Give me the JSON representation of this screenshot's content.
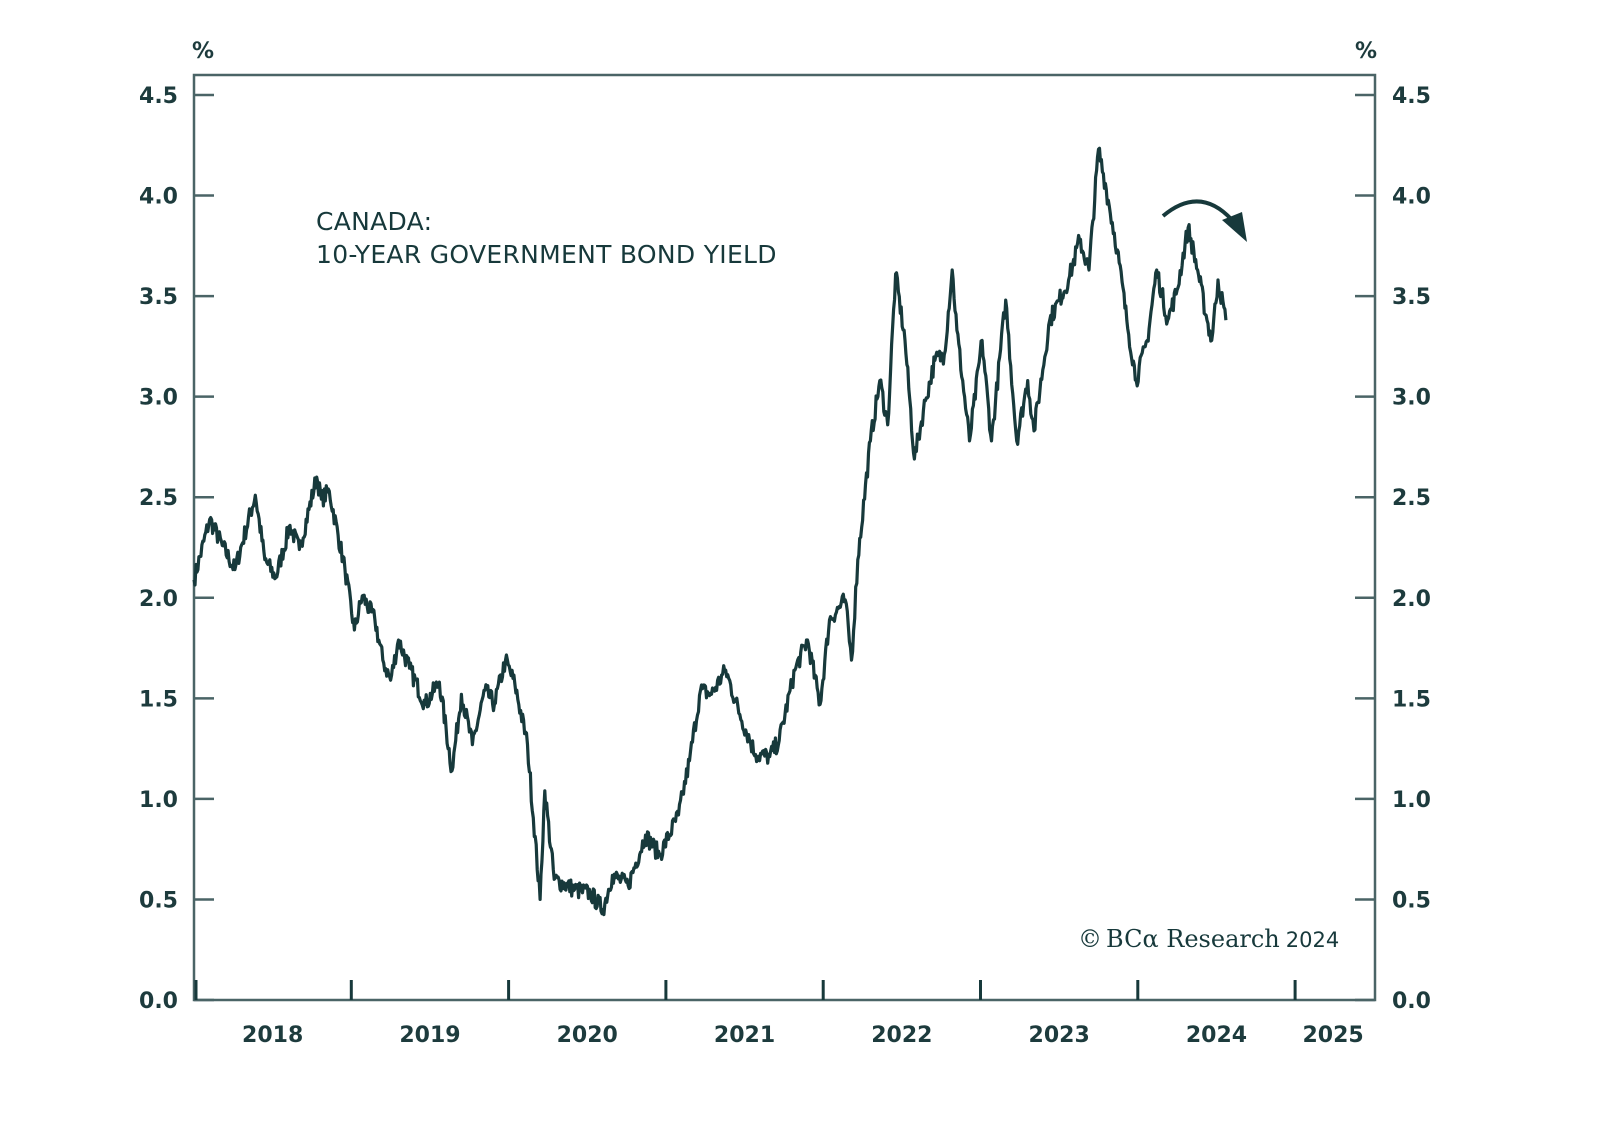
{
  "chart_data": {
    "type": "line",
    "title": "CANADA:",
    "subtitle": "10-YEAR GOVERNMENT BOND YIELD",
    "xlabel": "",
    "ylabel_left": "%",
    "ylabel_right": "%",
    "ylim": [
      0.0,
      4.5
    ],
    "xlim": [
      2018.0,
      2025.5
    ],
    "y_ticks": [
      "0.0",
      "0.5",
      "1.0",
      "1.5",
      "2.0",
      "2.5",
      "3.0",
      "3.5",
      "4.0",
      "4.5"
    ],
    "y_tick_values": [
      0.0,
      0.5,
      1.0,
      1.5,
      2.0,
      2.5,
      3.0,
      3.5,
      4.0,
      4.5
    ],
    "x_tick_labels": [
      "2018",
      "2019",
      "2020",
      "2021",
      "2022",
      "2023",
      "2024",
      "2025"
    ],
    "x_year_boundaries": [
      2019,
      2020,
      2021,
      2022,
      2023,
      2024,
      2025
    ],
    "grid": false,
    "legend": "none",
    "annotation": "curved-arrow-pointing-down",
    "copyright": {
      "symbol": "©",
      "brand": "BCα Research",
      "year": "2024"
    },
    "line_color": "#17393b",
    "series": [
      {
        "name": "Canada 10-Year Government Bond Yield",
        "x": [
          2018.0,
          2018.1,
          2018.18,
          2018.26,
          2018.39,
          2018.45,
          2018.52,
          2018.61,
          2018.67,
          2018.78,
          2018.81,
          2018.86,
          2018.96,
          2019.02,
          2019.07,
          2019.15,
          2019.2,
          2019.25,
          2019.3,
          2019.37,
          2019.47,
          2019.56,
          2019.64,
          2019.7,
          2019.77,
          2019.85,
          2019.91,
          2019.98,
          2020.04,
          2020.12,
          2020.2,
          2020.23,
          2020.29,
          2020.42,
          2020.52,
          2020.6,
          2020.66,
          2020.76,
          2020.87,
          2020.96,
          2021.08,
          2021.15,
          2021.22,
          2021.29,
          2021.38,
          2021.47,
          2021.57,
          2021.66,
          2021.72,
          2021.82,
          2021.9,
          2021.98,
          2022.04,
          2022.14,
          2022.18,
          2022.22,
          2022.3,
          2022.36,
          2022.41,
          2022.46,
          2022.52,
          2022.58,
          2022.65,
          2022.71,
          2022.77,
          2022.82,
          2022.85,
          2022.93,
          2023.01,
          2023.07,
          2023.16,
          2023.23,
          2023.3,
          2023.34,
          2023.44,
          2023.5,
          2023.56,
          2023.63,
          2023.69,
          2023.75,
          2023.8,
          2023.87,
          2023.93,
          2023.99,
          2024.06,
          2024.12,
          2024.19,
          2024.25,
          2024.32,
          2024.38,
          2024.44,
          2024.47,
          2024.51,
          2024.56
        ],
        "values": [
          2.09,
          2.39,
          2.26,
          2.14,
          2.51,
          2.19,
          2.1,
          2.36,
          2.24,
          2.6,
          2.49,
          2.53,
          2.14,
          1.84,
          2.01,
          1.89,
          1.69,
          1.59,
          1.79,
          1.65,
          1.47,
          1.58,
          1.14,
          1.52,
          1.27,
          1.54,
          1.47,
          1.69,
          1.57,
          1.27,
          0.5,
          1.04,
          0.6,
          0.55,
          0.53,
          0.45,
          0.62,
          0.57,
          0.82,
          0.72,
          0.92,
          1.19,
          1.54,
          1.52,
          1.64,
          1.42,
          1.22,
          1.21,
          1.29,
          1.64,
          1.79,
          1.47,
          1.89,
          1.99,
          1.69,
          2.19,
          2.78,
          3.08,
          2.86,
          3.61,
          3.28,
          2.69,
          2.98,
          3.18,
          3.21,
          3.63,
          3.33,
          2.78,
          3.28,
          2.78,
          3.48,
          2.78,
          3.08,
          2.83,
          3.38,
          3.48,
          3.58,
          3.78,
          3.63,
          4.23,
          4.03,
          3.73,
          3.38,
          3.08,
          3.28,
          3.63,
          3.38,
          3.53,
          3.84,
          3.63,
          3.38,
          3.28,
          3.58,
          3.38
        ]
      }
    ]
  }
}
